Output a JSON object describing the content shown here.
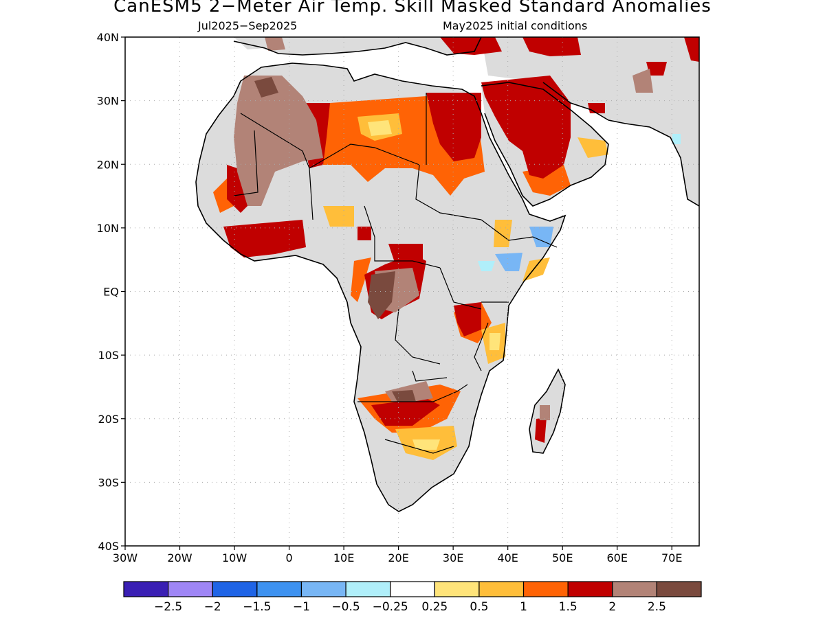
{
  "title": "CanESM5 2−Meter Air Temp. Skill Masked Standard Anomalies",
  "subtitle_left": "Jul2025−Sep2025",
  "subtitle_right": "May2025 initial conditions",
  "lat_labels": [
    "40N",
    "30N",
    "20N",
    "10N",
    "EQ",
    "10S",
    "20S",
    "30S",
    "40S"
  ],
  "lon_labels": [
    "30W",
    "20W",
    "10W",
    "0",
    "10E",
    "20E",
    "30E",
    "40E",
    "50E",
    "60E",
    "70E"
  ],
  "lat_values": [
    40,
    30,
    20,
    10,
    0,
    -10,
    -20,
    -30,
    -40
  ],
  "lon_values": [
    -30,
    -20,
    -10,
    0,
    10,
    20,
    30,
    40,
    50,
    60,
    70
  ],
  "colorbar": {
    "colors": [
      "#3a1fb4",
      "#9f86f6",
      "#1f64e6",
      "#3e92f0",
      "#78b6f5",
      "#b0effa",
      "#ffffff",
      "#ffe47a",
      "#ffbe3a",
      "#ff6305",
      "#c00000",
      "#b28377",
      "#7a4a3e"
    ],
    "labels": [
      "−2.5",
      "−2",
      "−1.5",
      "−1",
      "−0.5",
      "−0.25",
      "0.25",
      "0.5",
      "1",
      "1.5",
      "2",
      "2.5"
    ]
  },
  "colors": {
    "land_masked": "#dcdcdc",
    "ocean": "#ffffff",
    "coast": "#000000",
    "grid": "#aaaaaa"
  }
}
